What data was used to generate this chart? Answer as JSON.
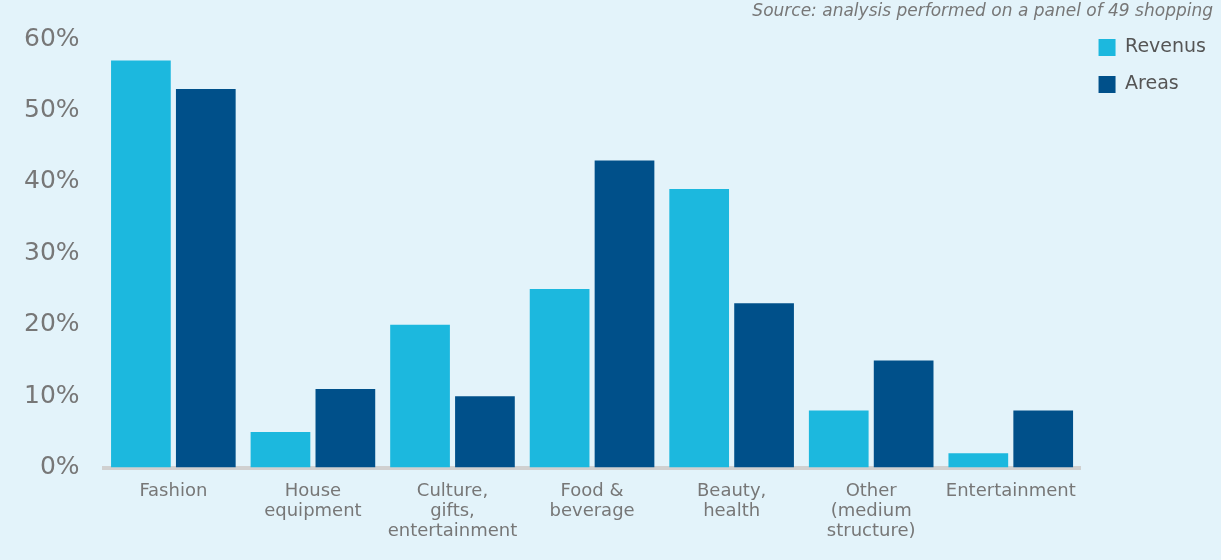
{
  "chart_data": {
    "type": "bar",
    "categories": [
      "Fashion",
      "House equipment",
      "Culture, gifts, entertainment",
      "Food & beverage",
      "Beauty, health",
      "Other (medium structure)",
      "Entertainment"
    ],
    "series": [
      {
        "name": "Revenus",
        "color": "#1cb8de",
        "values": [
          57,
          5,
          20,
          25,
          39,
          8,
          2
        ]
      },
      {
        "name": "Areas",
        "color": "#00508a",
        "values": [
          53,
          11,
          10,
          43,
          23,
          15,
          8
        ]
      }
    ],
    "ylim": [
      0,
      60
    ],
    "yticks": [
      {
        "value": 0,
        "label": "0%"
      },
      {
        "value": 10,
        "label": "10%"
      },
      {
        "value": 20,
        "label": "20%"
      },
      {
        "value": 30,
        "label": "30%"
      },
      {
        "value": 40,
        "label": "40%"
      },
      {
        "value": 50,
        "label": "50%"
      },
      {
        "value": 60,
        "label": "60%"
      }
    ],
    "grid": false,
    "legend": "right",
    "annotations": [
      "Source: analysis performed on a panel of 49 shopping"
    ]
  }
}
